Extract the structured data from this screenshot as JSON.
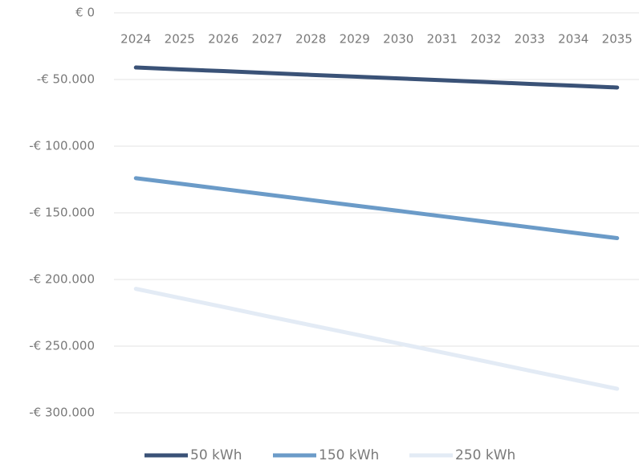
{
  "chart_data": {
    "type": "line",
    "categories": [
      "2024",
      "2025",
      "2026",
      "2027",
      "2028",
      "2029",
      "2030",
      "2031",
      "2032",
      "2033",
      "2034",
      "2035"
    ],
    "series": [
      {
        "name": "50 kWh",
        "color": "#3a5277",
        "values": [
          -41000,
          -42400,
          -43700,
          -45100,
          -46500,
          -47800,
          -49200,
          -50500,
          -51900,
          -53300,
          -54600,
          -56000
        ]
      },
      {
        "name": "150 kWh",
        "color": "#6b9bc8",
        "values": [
          -124000,
          -128100,
          -132200,
          -136300,
          -140400,
          -144500,
          -148500,
          -152600,
          -156700,
          -160800,
          -164900,
          -169000
        ]
      },
      {
        "name": "250 kWh",
        "color": "#e3ebf5",
        "values": [
          -207000,
          -213800,
          -220600,
          -227500,
          -234300,
          -241100,
          -247900,
          -254700,
          -261500,
          -268400,
          -275200,
          -282000
        ]
      }
    ],
    "ylim": [
      -300000,
      0
    ],
    "yticks": [
      {
        "value": 0,
        "label": "€ 0"
      },
      {
        "value": -50000,
        "label": "-€ 50.000"
      },
      {
        "value": -100000,
        "label": "-€ 100.000"
      },
      {
        "value": -150000,
        "label": "-€ 150.000"
      },
      {
        "value": -200000,
        "label": "-€ 200.000"
      },
      {
        "value": -250000,
        "label": "-€ 250.000"
      },
      {
        "value": -300000,
        "label": "-€ 300.000"
      }
    ],
    "grid": true,
    "legend": "bottom"
  }
}
